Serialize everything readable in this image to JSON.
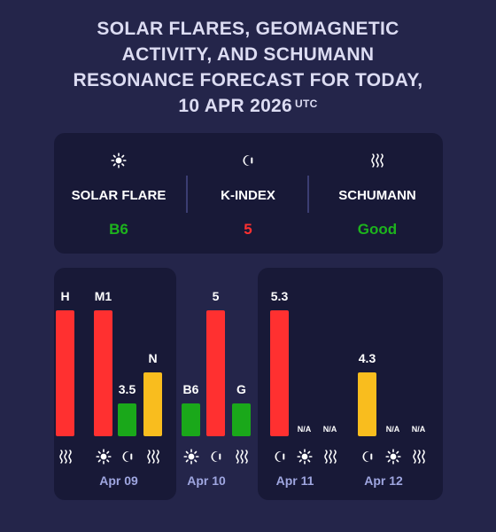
{
  "title": {
    "line1": "SOLAR FLARES, GEOMAGNETIC",
    "line2": "ACTIVITY, AND SCHUMANN",
    "line3": "RESONANCE FORECAST FOR TODAY,",
    "line4": "10 APR 2026",
    "tz": "UTC"
  },
  "summary": {
    "solar": {
      "icon": "sun-icon",
      "label": "SOLAR FLARE",
      "value": "B6",
      "color": "#1db31d"
    },
    "kindex": {
      "icon": "moon-icon",
      "label": "K-INDEX",
      "value": "5",
      "color": "#ff3030"
    },
    "schumann": {
      "icon": "wave-icon",
      "label": "SCHUMANN",
      "value": "Good",
      "color": "#1db31d"
    }
  },
  "colors": {
    "red": "#ff3030",
    "green": "#1aa81a",
    "yellow": "#f9bd1e",
    "panel": "#181937",
    "bg": "#24254a"
  },
  "days": [
    {
      "date": "Apr 09",
      "bars": [
        {
          "type": "schumann",
          "icon": "wave-icon",
          "label": "H",
          "level": 1.0,
          "color": "#ff3030"
        },
        {
          "type": "solar",
          "icon": "sun-icon",
          "label": "M1",
          "level": 1.0,
          "color": "#ff3030"
        },
        {
          "type": "kindex",
          "icon": "moon-icon",
          "label": "3.5",
          "level": 0.26,
          "color": "#1aa81a"
        },
        {
          "type": "schumann",
          "icon": "wave-icon",
          "label": "N",
          "level": 0.51,
          "color": "#f9bd1e"
        }
      ]
    },
    {
      "date": "Apr 10",
      "bars": [
        {
          "type": "solar",
          "icon": "sun-icon",
          "label": "B6",
          "level": 0.26,
          "color": "#1aa81a"
        },
        {
          "type": "kindex",
          "icon": "moon-icon",
          "label": "5",
          "level": 1.0,
          "color": "#ff3030"
        },
        {
          "type": "schumann",
          "icon": "wave-icon",
          "label": "G",
          "level": 0.26,
          "color": "#1aa81a"
        }
      ]
    },
    {
      "date": "Apr 11",
      "bars": [
        {
          "type": "kindex",
          "icon": "moon-icon",
          "label": "5.3",
          "level": 1.0,
          "color": "#ff3030"
        },
        {
          "type": "solar",
          "icon": "sun-icon",
          "label": "N/A",
          "level": 0,
          "color": ""
        },
        {
          "type": "schumann",
          "icon": "wave-icon",
          "label": "N/A",
          "level": 0,
          "color": ""
        }
      ]
    },
    {
      "date": "Apr 12",
      "bars": [
        {
          "type": "kindex",
          "icon": "moon-icon",
          "label": "4.3",
          "level": 0.51,
          "color": "#f9bd1e"
        },
        {
          "type": "solar",
          "icon": "sun-icon",
          "label": "N/A",
          "level": 0,
          "color": ""
        },
        {
          "type": "schumann",
          "icon": "wave-icon",
          "label": "N/A",
          "level": 0,
          "color": ""
        }
      ]
    }
  ]
}
